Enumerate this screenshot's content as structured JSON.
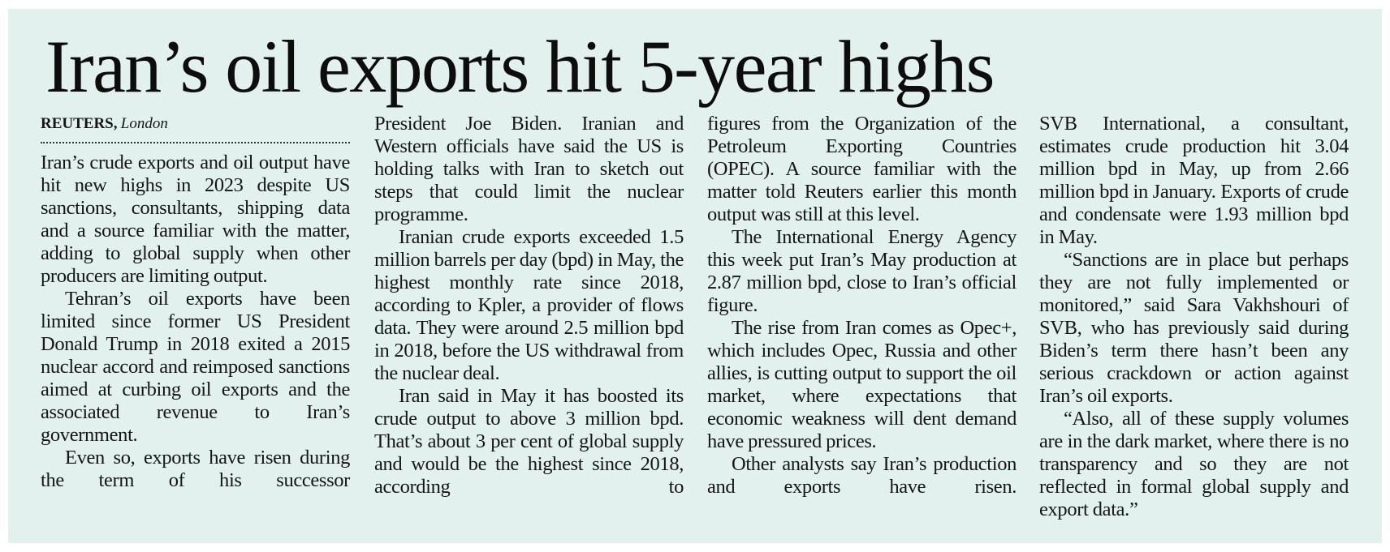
{
  "article": {
    "headline": "Iran’s oil exports hit 5-year highs",
    "byline": {
      "agency": "REUTERS,",
      "location": "London"
    },
    "columns": [
      [
        "Iran’s crude exports and oil output have hit new highs in 2023 despite US sanctions, consultants, shipping data and a source familiar with the matter, adding to global supply when other producers are limiting output.",
        "Tehran’s oil exports have been limited since former US President Donald Trump in 2018 exited a 2015 nuclear accord and reimposed sanctions aimed at curbing oil exports and the associated revenue to Iran’s government.",
        "Even so, exports have risen during the term of his successor"
      ],
      [
        "President Joe Biden. Iranian and Western officials have said the US is holding talks with Iran to sketch out steps that could limit the nuclear programme.",
        "Iranian crude exports exceeded 1.5 million barrels per day (bpd) in May, the highest monthly rate since 2018, according to Kpler, a provider of flows data. They were around 2.5 million bpd in 2018, before the US withdrawal from the nuclear deal.",
        "Iran said in May it has boosted its crude output to above 3 million bpd. That’s about 3 per cent of global supply and would be the highest since 2018, according to"
      ],
      [
        "figures from the Organization of the Petroleum Exporting Countries (OPEC). A source familiar with the matter told Reuters earlier this month output was still at this level.",
        "The International Energy Agency this week put Iran’s May production at 2.87 million bpd, close to Iran’s official figure.",
        "The rise from Iran comes as Opec+, which includes Opec, Russia and other allies, is cutting output to support the oil market, where expectations that economic weakness will dent demand have pressured prices.",
        "Other analysts say Iran’s production and exports have risen."
      ],
      [
        "SVB International, a consultant, estimates crude production hit 3.04 million bpd in May, up from 2.66 million bpd in January. Exports of crude and condensate were 1.93 million bpd in May.",
        "“Sanctions are in place but perhaps they are not fully implemented or monitored,” said Sara Vakhshouri of SVB, who has previously said during Biden’s term there hasn’t been any serious crackdown or action against Iran’s oil exports.",
        "“Also, all of these supply volumes are in the dark market, where there is no transparency and so they are not reflected in formal global supply and export data.”"
      ]
    ]
  },
  "colors": {
    "background": "#e2f1ee",
    "text": "#151515"
  }
}
